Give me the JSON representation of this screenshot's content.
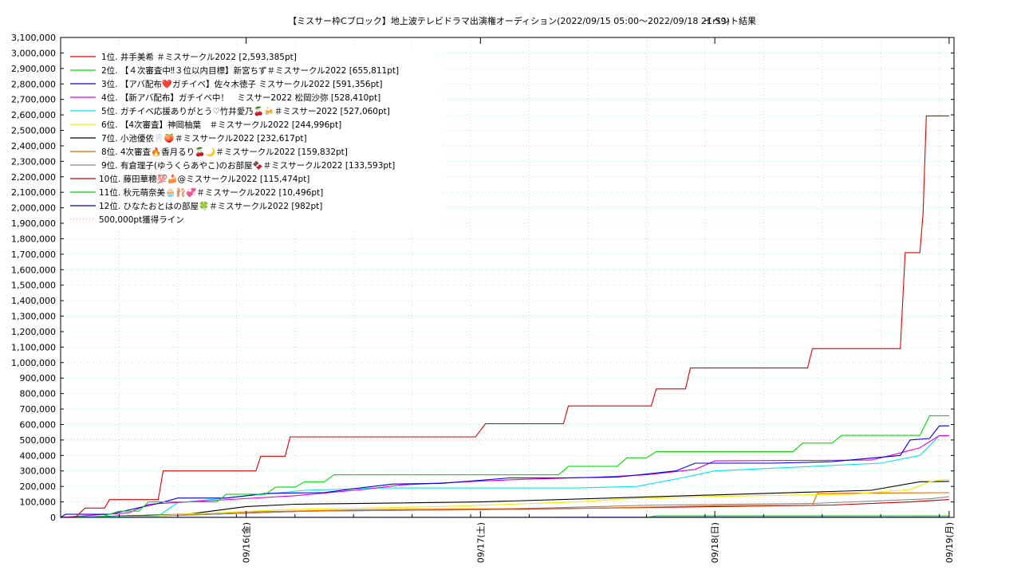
{
  "chart_data": {
    "type": "line",
    "title": "【ミスサー枠Cブロック】地上波テレビドラマ出演権オーディション(2022/09/15 05:00〜2022/09/18 21:59)",
    "subtitle": "イベント結果",
    "xlabel": "",
    "ylabel": "",
    "x_ticks": [
      "09/16(金)",
      "09/17(土)",
      "09/18(日)",
      "09/19(月)"
    ],
    "y_ticks": [
      "0",
      "100,000",
      "200,000",
      "300,000",
      "400,000",
      "500,000",
      "600,000",
      "700,000",
      "800,000",
      "900,000",
      "1,000,000",
      "1,100,000",
      "1,200,000",
      "1,300,000",
      "1,400,000",
      "1,500,000",
      "1,600,000",
      "1,700,000",
      "1,800,000",
      "1,900,000",
      "2,000,000",
      "2,100,000",
      "2,200,000",
      "2,300,000",
      "2,400,000",
      "2,500,000",
      "2,600,000",
      "2,700,000",
      "2,800,000",
      "2,900,000",
      "3,000,000",
      "3,100,000"
    ],
    "xlim": [
      "2022-09-15 05:00",
      "2022-09-19 00:30"
    ],
    "ylim": [
      0,
      3100000
    ],
    "grid": true,
    "legend_position": "top-left",
    "reference_line": {
      "name": "500,000pt獲得ライン",
      "value": 500000,
      "color": "#ff9999"
    },
    "series": [
      {
        "name": "1位. 井手美希 ＃ミスサークル2022 [2,593,385pt]",
        "color": "#dd0000",
        "points": [
          [
            "2022-09-15 05:00",
            0
          ],
          [
            "2022-09-15 06:30",
            0
          ],
          [
            "2022-09-15 07:30",
            60000
          ],
          [
            "2022-09-15 09:30",
            60000
          ],
          [
            "2022-09-15 10:00",
            115000
          ],
          [
            "2022-09-15 15:00",
            115000
          ],
          [
            "2022-09-15 15:30",
            300000
          ],
          [
            "2022-09-16 01:00",
            300000
          ],
          [
            "2022-09-16 01:30",
            395000
          ],
          [
            "2022-09-16 04:00",
            395000
          ],
          [
            "2022-09-16 04:30",
            520000
          ],
          [
            "2022-09-16 23:30",
            520000
          ],
          [
            "2022-09-17 00:30",
            605000
          ],
          [
            "2022-09-17 08:30",
            605000
          ],
          [
            "2022-09-17 09:00",
            720000
          ],
          [
            "2022-09-17 17:30",
            720000
          ],
          [
            "2022-09-17 18:00",
            830000
          ],
          [
            "2022-09-17 21:00",
            830000
          ],
          [
            "2022-09-17 21:30",
            965000
          ],
          [
            "2022-09-18 09:30",
            965000
          ],
          [
            "2022-09-18 10:00",
            1090000
          ],
          [
            "2022-09-18 19:00",
            1090000
          ],
          [
            "2022-09-18 19:30",
            1710000
          ],
          [
            "2022-09-18 21:00",
            1710000
          ],
          [
            "2022-09-18 21:20",
            1960000
          ],
          [
            "2022-09-18 21:40",
            2593385
          ],
          [
            "2022-09-19 00:00",
            2593385
          ]
        ]
      },
      {
        "name": "2位. 【４次審査中‼３位以内目標】新宮ちず＃ミスサークル2022 [655,811pt]",
        "color": "#00dd00",
        "points": [
          [
            "2022-09-15 05:00",
            0
          ],
          [
            "2022-09-15 09:00",
            0
          ],
          [
            "2022-09-15 11:00",
            40000
          ],
          [
            "2022-09-15 13:00",
            40000
          ],
          [
            "2022-09-15 14:00",
            100000
          ],
          [
            "2022-09-15 21:00",
            100000
          ],
          [
            "2022-09-15 22:00",
            150000
          ],
          [
            "2022-09-16 02:00",
            150000
          ],
          [
            "2022-09-16 03:00",
            195000
          ],
          [
            "2022-09-16 05:00",
            195000
          ],
          [
            "2022-09-16 06:00",
            230000
          ],
          [
            "2022-09-16 08:00",
            230000
          ],
          [
            "2022-09-16 09:00",
            275000
          ],
          [
            "2022-09-17 08:00",
            275000
          ],
          [
            "2022-09-17 09:00",
            330000
          ],
          [
            "2022-09-17 14:00",
            330000
          ],
          [
            "2022-09-17 15:00",
            385000
          ],
          [
            "2022-09-17 17:00",
            385000
          ],
          [
            "2022-09-17 18:00",
            425000
          ],
          [
            "2022-09-18 08:00",
            425000
          ],
          [
            "2022-09-18 09:00",
            480000
          ],
          [
            "2022-09-18 12:00",
            480000
          ],
          [
            "2022-09-18 13:00",
            530000
          ],
          [
            "2022-09-18 21:00",
            530000
          ],
          [
            "2022-09-18 22:00",
            655811
          ],
          [
            "2022-09-19 00:00",
            655811
          ]
        ]
      },
      {
        "name": "3位. 【アバ配布❤️ガチイベ】佐々木徳子 ミスサークル2022 [591,356pt]",
        "color": "#0000dd",
        "points": [
          [
            "2022-09-15 05:00",
            0
          ],
          [
            "2022-09-15 05:30",
            20000
          ],
          [
            "2022-09-15 08:00",
            20000
          ],
          [
            "2022-09-15 10:00",
            20000
          ],
          [
            "2022-09-15 15:00",
            90000
          ],
          [
            "2022-09-15 17:00",
            125000
          ],
          [
            "2022-09-15 22:00",
            125000
          ],
          [
            "2022-09-16 02:00",
            155000
          ],
          [
            "2022-09-16 08:00",
            160000
          ],
          [
            "2022-09-16 11:00",
            185000
          ],
          [
            "2022-09-16 15:00",
            215000
          ],
          [
            "2022-09-16 20:00",
            220000
          ],
          [
            "2022-09-17 03:00",
            255000
          ],
          [
            "2022-09-17 08:00",
            255000
          ],
          [
            "2022-09-17 14:00",
            260000
          ],
          [
            "2022-09-17 20:00",
            300000
          ],
          [
            "2022-09-17 22:00",
            350000
          ],
          [
            "2022-09-18 06:00",
            350000
          ],
          [
            "2022-09-18 12:00",
            360000
          ],
          [
            "2022-09-18 19:00",
            400000
          ],
          [
            "2022-09-18 20:00",
            500000
          ],
          [
            "2022-09-18 22:00",
            510000
          ],
          [
            "2022-09-18 23:00",
            591356
          ],
          [
            "2022-09-19 00:00",
            591356
          ]
        ]
      },
      {
        "name": "4位. 【新アバ配布】ガチイベ中！　ミスサー2022 松岡沙弥 [528,410pt]",
        "color": "#dd00dd",
        "points": [
          [
            "2022-09-15 05:00",
            0
          ],
          [
            "2022-09-15 12:00",
            30000
          ],
          [
            "2022-09-15 14:00",
            85000
          ],
          [
            "2022-09-15 18:00",
            100000
          ],
          [
            "2022-09-16 05:00",
            140000
          ],
          [
            "2022-09-16 12:00",
            180000
          ],
          [
            "2022-09-16 16:00",
            210000
          ],
          [
            "2022-09-17 00:00",
            235000
          ],
          [
            "2022-09-17 04:00",
            245000
          ],
          [
            "2022-09-17 12:00",
            260000
          ],
          [
            "2022-09-17 17:00",
            275000
          ],
          [
            "2022-09-17 22:00",
            310000
          ],
          [
            "2022-09-18 00:00",
            365000
          ],
          [
            "2022-09-18 16:00",
            370000
          ],
          [
            "2022-09-18 18:00",
            400000
          ],
          [
            "2022-09-18 21:00",
            450000
          ],
          [
            "2022-09-18 23:00",
            528410
          ],
          [
            "2022-09-19 00:00",
            528410
          ]
        ]
      },
      {
        "name": "5位. ガチイベ応援ありがとう♡竹井愛乃🍒🍻＃ミスサー2022 [527,060pt]",
        "color": "#00e5e5",
        "points": [
          [
            "2022-09-15 05:00",
            0
          ],
          [
            "2022-09-15 15:00",
            10000
          ],
          [
            "2022-09-15 17:00",
            95000
          ],
          [
            "2022-09-16 06:00",
            175000
          ],
          [
            "2022-09-16 14:00",
            190000
          ],
          [
            "2022-09-17 10:00",
            190000
          ],
          [
            "2022-09-17 16:00",
            200000
          ],
          [
            "2022-09-17 21:00",
            260000
          ],
          [
            "2022-09-18 00:00",
            300000
          ],
          [
            "2022-09-18 17:00",
            350000
          ],
          [
            "2022-09-18 21:00",
            400000
          ],
          [
            "2022-09-18 23:00",
            527060
          ],
          [
            "2022-09-19 00:00",
            527060
          ]
        ]
      },
      {
        "name": "6位. 【4次審査】神岡柚葉　＃ミスサークル2022 [244,996pt]",
        "color": "#eeee00",
        "points": [
          [
            "2022-09-15 05:00",
            0
          ],
          [
            "2022-09-15 14:00",
            10000
          ],
          [
            "2022-09-16 04:00",
            50000
          ],
          [
            "2022-09-16 20:00",
            70000
          ],
          [
            "2022-09-17 10:00",
            100000
          ],
          [
            "2022-09-17 15:00",
            120000
          ],
          [
            "2022-09-17 23:00",
            135000
          ],
          [
            "2022-09-18 14:00",
            150000
          ],
          [
            "2022-09-18 20:00",
            180000
          ],
          [
            "2022-09-18 22:00",
            230000
          ],
          [
            "2022-09-18 23:30",
            244996
          ],
          [
            "2022-09-19 00:00",
            244996
          ]
        ]
      },
      {
        "name": "7位. 小池優依🦷🍑＃ミスサークル2022 [232,617pt]",
        "color": "#000000",
        "points": [
          [
            "2022-09-15 05:00",
            0
          ],
          [
            "2022-09-15 18:00",
            20000
          ],
          [
            "2022-09-16 00:00",
            70000
          ],
          [
            "2022-09-16 05:00",
            85000
          ],
          [
            "2022-09-17 00:00",
            100000
          ],
          [
            "2022-09-18 00:00",
            145000
          ],
          [
            "2022-09-18 16:00",
            175000
          ],
          [
            "2022-09-18 21:00",
            230000
          ],
          [
            "2022-09-19 00:00",
            232617
          ]
        ]
      },
      {
        "name": "8位. 4次審査🔥香月るり🍒🌙＃ミスサークル2022 [159,832pt]",
        "color": "#ee6600",
        "points": [
          [
            "2022-09-15 05:00",
            0
          ],
          [
            "2022-09-15 12:00",
            10000
          ],
          [
            "2022-09-16 00:00",
            35000
          ],
          [
            "2022-09-16 12:00",
            50000
          ],
          [
            "2022-09-17 12:00",
            60000
          ],
          [
            "2022-09-18 00:00",
            75000
          ],
          [
            "2022-09-18 10:00",
            80000
          ],
          [
            "2022-09-18 10:30",
            155000
          ],
          [
            "2022-09-18 23:00",
            159832
          ],
          [
            "2022-09-19 00:00",
            159832
          ]
        ]
      },
      {
        "name": "9位. 有倉理子(ゆうくらあやこ)のお部屋🍫＃ミスサークル2022 [133,593pt]",
        "color": "#888888",
        "points": [
          [
            "2022-09-15 05:00",
            0
          ],
          [
            "2022-09-15 15:00",
            10000
          ],
          [
            "2022-09-16 06:00",
            40000
          ],
          [
            "2022-09-17 00:00",
            50000
          ],
          [
            "2022-09-17 18:00",
            80000
          ],
          [
            "2022-09-18 10:00",
            90000
          ],
          [
            "2022-09-18 22:00",
            120000
          ],
          [
            "2022-09-19 00:00",
            133593
          ]
        ]
      },
      {
        "name": "10位. 藤田華穂💯🍰@ミスサークル2022 [115,474pt]",
        "color": "#bb0000",
        "points": [
          [
            "2022-09-15 05:00",
            0
          ],
          [
            "2022-09-15 18:00",
            15000
          ],
          [
            "2022-09-16 06:00",
            40000
          ],
          [
            "2022-09-17 00:00",
            50000
          ],
          [
            "2022-09-17 18:00",
            65000
          ],
          [
            "2022-09-18 12:00",
            80000
          ],
          [
            "2022-09-18 20:00",
            100000
          ],
          [
            "2022-09-19 00:00",
            115474
          ]
        ]
      },
      {
        "name": "11位. 秋元萌奈美🧁🩰💞＃ミスサークル2022 [10,496pt]",
        "color": "#00cc00",
        "points": [
          [
            "2022-09-15 05:00",
            0
          ],
          [
            "2022-09-17 17:00",
            0
          ],
          [
            "2022-09-17 18:00",
            10000
          ],
          [
            "2022-09-19 00:00",
            10496
          ]
        ]
      },
      {
        "name": "12位. ひなたおとはの部屋🍀＃ミスサークル2022 [982pt]",
        "color": "#0000bb",
        "points": [
          [
            "2022-09-15 05:00",
            0
          ],
          [
            "2022-09-16 12:00",
            500
          ],
          [
            "2022-09-19 00:00",
            982
          ]
        ]
      }
    ]
  }
}
